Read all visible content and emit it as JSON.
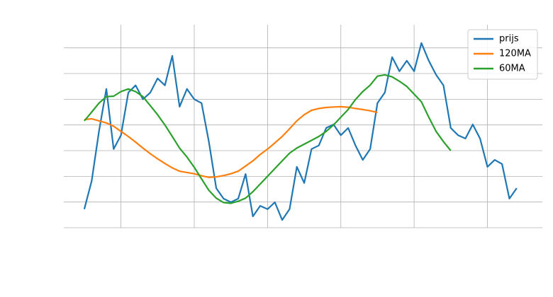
{
  "chart_data": {
    "type": "line",
    "x": [
      0,
      1,
      2,
      3,
      4,
      5,
      6,
      7,
      8,
      9,
      10,
      11,
      12,
      13,
      14,
      15,
      16,
      17,
      18,
      19,
      20,
      21,
      22,
      23,
      24,
      25,
      26,
      27,
      28,
      29,
      30,
      31,
      32,
      33,
      34,
      35,
      36,
      37,
      38,
      39,
      40,
      41,
      42,
      43,
      44,
      45,
      46,
      47,
      48,
      49,
      50,
      51,
      52,
      53,
      54,
      55,
      56,
      57,
      58,
      59
    ],
    "series": [
      {
        "name": "prijs",
        "color": "#1f77b4",
        "values": [
          0.72,
          1.82,
          3.75,
          5.4,
          3.06,
          3.6,
          5.26,
          5.54,
          5.0,
          5.26,
          5.81,
          5.54,
          6.69,
          4.71,
          5.4,
          5.0,
          4.85,
          3.33,
          1.54,
          1.13,
          0.99,
          1.13,
          2.09,
          0.44,
          0.85,
          0.72,
          0.99,
          0.3,
          0.72,
          2.37,
          1.74,
          3.06,
          3.2,
          3.88,
          4.02,
          3.6,
          3.88,
          3.2,
          2.64,
          3.06,
          4.85,
          5.26,
          6.64,
          6.09,
          6.5,
          6.09,
          7.19,
          6.5,
          5.95,
          5.54,
          3.88,
          3.6,
          3.47,
          4.02,
          3.47,
          2.37,
          2.64,
          2.48,
          1.13,
          1.54
        ]
      },
      {
        "name": "120MA",
        "color": "#ff7f0e",
        "values": [
          4.21,
          4.24,
          4.16,
          4.08,
          3.95,
          3.75,
          3.55,
          3.33,
          3.1,
          2.88,
          2.68,
          2.5,
          2.33,
          2.2,
          2.15,
          2.1,
          2.02,
          1.96,
          1.98,
          2.03,
          2.1,
          2.2,
          2.4,
          2.6,
          2.85,
          3.06,
          3.3,
          3.55,
          3.85,
          4.16,
          4.4,
          4.57,
          4.64,
          4.68,
          4.7,
          4.71,
          4.69,
          4.64,
          4.6,
          4.55,
          4.49,
          null,
          null,
          null,
          null,
          null,
          null,
          null,
          null,
          null,
          null,
          null,
          null,
          null,
          null,
          null,
          null,
          null,
          null,
          null
        ]
      },
      {
        "name": "60MA",
        "color": "#2ca02c",
        "values": [
          4.16,
          4.5,
          4.85,
          5.1,
          5.12,
          5.3,
          5.4,
          5.3,
          5.1,
          4.75,
          4.4,
          4.0,
          3.55,
          3.1,
          2.75,
          2.35,
          1.9,
          1.45,
          1.15,
          0.98,
          0.95,
          1.03,
          1.15,
          1.4,
          1.7,
          2.0,
          2.3,
          2.6,
          2.9,
          3.1,
          3.25,
          3.4,
          3.55,
          3.75,
          4.0,
          4.3,
          4.6,
          4.99,
          5.3,
          5.55,
          5.9,
          5.95,
          5.87,
          5.7,
          5.5,
          5.2,
          4.9,
          4.3,
          3.75,
          3.35,
          3.0,
          null,
          null,
          null,
          null,
          null,
          null,
          null,
          null,
          null
        ]
      }
    ],
    "xlim": [
      -2.8,
      62.5
    ],
    "xticks": [
      5,
      15,
      25,
      35,
      45,
      55
    ],
    "ylim": [
      0,
      7.9
    ],
    "yticks": [
      0,
      1,
      2,
      3,
      4,
      5,
      6,
      7
    ],
    "grid": true,
    "legend": "upper-right"
  }
}
